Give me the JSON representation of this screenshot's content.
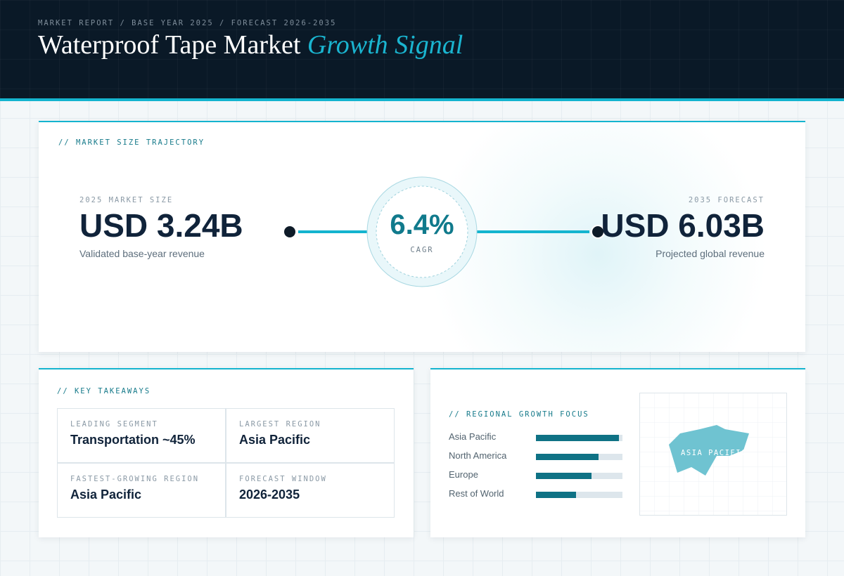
{
  "header": {
    "kicker": "MARKET REPORT / BASE YEAR 2025 / FORECAST 2026-2035",
    "title": "Waterproof Tape Market",
    "title_accent": "Growth Signal"
  },
  "trajectory": {
    "label": "// MARKET SIZE TRAJECTORY",
    "start": {
      "label": "2025 MARKET SIZE",
      "value": "USD 3.24B",
      "caption": "Validated base-year revenue"
    },
    "cagr": {
      "value": "6.4%",
      "label": "CAGR"
    },
    "end": {
      "label": "2035 FORECAST",
      "value": "USD 6.03B",
      "caption": "Projected global revenue"
    }
  },
  "takeaways": {
    "label": "// KEY TAKEAWAYS",
    "items": [
      {
        "label": "LEADING SEGMENT",
        "value": "Transportation ~45%"
      },
      {
        "label": "LARGEST REGION",
        "value": "Asia Pacific"
      },
      {
        "label": "FASTEST-GROWING REGION",
        "value": "Asia Pacific"
      },
      {
        "label": "FORECAST WINDOW",
        "value": "2026-2035"
      }
    ]
  },
  "regional": {
    "label": "// REGIONAL GROWTH FOCUS",
    "categories": [
      "Asia Pacific",
      "North America",
      "Europe",
      "Rest of World"
    ],
    "values": [
      96,
      72,
      64,
      46
    ],
    "xlim": [
      0,
      100
    ],
    "color": "#0f7285",
    "map_label": "ASIA PACIFIC"
  }
}
